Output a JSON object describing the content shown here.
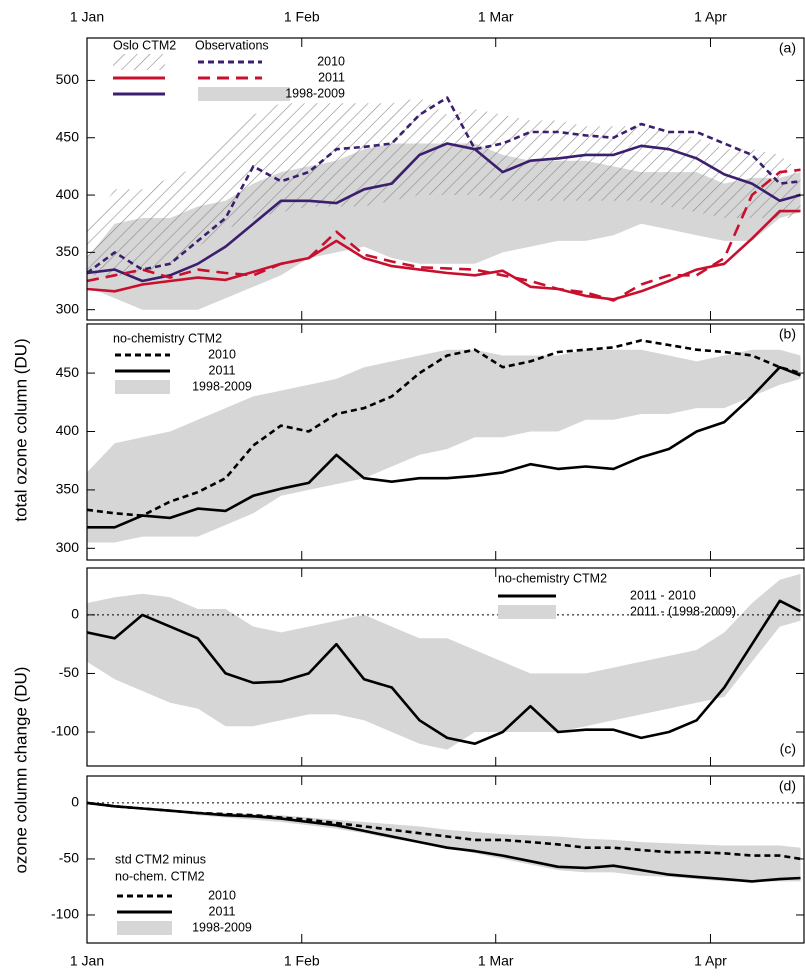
{
  "chart_data": [
    {
      "type": "line",
      "panel_label": "(a)",
      "ylabel": "total ozone column  (DU)",
      "x": [
        0,
        4,
        8,
        12,
        16,
        20,
        24,
        28,
        32,
        36,
        40,
        44,
        48,
        52,
        56,
        60,
        64,
        68,
        72,
        76,
        80,
        84,
        88,
        92,
        96,
        100,
        103
      ],
      "xlim": [
        0,
        103.5
      ],
      "xticks": [
        {
          "value": 0,
          "label": "1 Jan"
        },
        {
          "value": 31,
          "label": "1 Feb"
        },
        {
          "value": 59,
          "label": "1 Mar"
        },
        {
          "value": 90,
          "label": "1 Apr"
        }
      ],
      "xtick_labels": "top",
      "ylim": [
        291,
        537
      ],
      "yticks": [
        300,
        350,
        400,
        450,
        500
      ],
      "legend_titles": [
        "Oslo CTM2",
        "Observations"
      ],
      "series": [
        {
          "name": "1998-2009",
          "color": "#d6d6d6",
          "style": "band",
          "low": [
            320,
            310,
            300,
            300,
            300,
            310,
            320,
            330,
            345,
            350,
            355,
            345,
            340,
            340,
            340,
            350,
            355,
            360,
            360,
            365,
            375,
            370,
            365,
            360,
            360,
            380,
            385
          ],
          "high": [
            345,
            375,
            380,
            380,
            390,
            395,
            410,
            420,
            425,
            430,
            440,
            445,
            445,
            445,
            445,
            435,
            430,
            430,
            430,
            425,
            420,
            420,
            420,
            410,
            415,
            415,
            420
          ]
        },
        {
          "color": "#8a8a8a",
          "style": "hatch",
          "low": [
            330,
            330,
            330,
            340,
            355,
            370,
            380,
            385,
            390,
            390,
            390,
            395,
            400,
            400,
            400,
            395,
            395,
            395,
            395,
            395,
            395,
            390,
            385,
            380,
            380,
            380,
            380
          ],
          "high": [
            370,
            405,
            405,
            415,
            425,
            450,
            470,
            480,
            480,
            480,
            480,
            480,
            485,
            470,
            475,
            470,
            465,
            465,
            460,
            460,
            460,
            455,
            450,
            440,
            440,
            435,
            420
          ]
        },
        {
          "color": "#c8102e",
          "style": "solid",
          "values": [
            318,
            316,
            322,
            325,
            328,
            326,
            333,
            340,
            345,
            360,
            345,
            338,
            335,
            332,
            330,
            334,
            320,
            318,
            312,
            309,
            316,
            325,
            335,
            340,
            362,
            386,
            386
          ]
        },
        {
          "color": "#3b1f6e",
          "style": "solid",
          "values": [
            332,
            335,
            325,
            330,
            340,
            355,
            375,
            395,
            395,
            393,
            405,
            410,
            435,
            445,
            440,
            420,
            430,
            432,
            435,
            435,
            443,
            440,
            432,
            418,
            410,
            395,
            400
          ]
        },
        {
          "name": "2011",
          "color": "#c8102e",
          "style": "dashed",
          "values": [
            325,
            330,
            335,
            328,
            335,
            332,
            330,
            340,
            345,
            368,
            348,
            342,
            337,
            336,
            335,
            330,
            325,
            318,
            315,
            308,
            322,
            330,
            330,
            345,
            400,
            420,
            422
          ]
        },
        {
          "name": "2010",
          "color": "#3b1f6e",
          "style": "dotted",
          "values": [
            332,
            350,
            335,
            340,
            360,
            380,
            425,
            412,
            420,
            440,
            442,
            445,
            470,
            485,
            440,
            445,
            455,
            455,
            452,
            450,
            462,
            455,
            455,
            445,
            435,
            410,
            412
          ]
        }
      ]
    },
    {
      "type": "line",
      "panel_label": "(b)",
      "x": [
        0,
        4,
        8,
        12,
        16,
        20,
        24,
        28,
        32,
        36,
        40,
        44,
        48,
        52,
        56,
        60,
        64,
        68,
        72,
        76,
        80,
        84,
        88,
        92,
        96,
        100,
        103
      ],
      "xlim": [
        0,
        103.5
      ],
      "xticks": [
        {
          "value": 0,
          "label": "1 Jan"
        },
        {
          "value": 31,
          "label": "1 Feb"
        },
        {
          "value": 59,
          "label": "1 Mar"
        },
        {
          "value": 90,
          "label": "1 Apr"
        }
      ],
      "xtick_labels": "none",
      "ylim": [
        290,
        492
      ],
      "yticks": [
        300,
        350,
        400,
        450
      ],
      "legend_titles": [
        "no-chemistry CTM2"
      ],
      "series": [
        {
          "name": "1998-2009",
          "color": "#d6d6d6",
          "style": "band",
          "low": [
            305,
            305,
            310,
            310,
            310,
            320,
            330,
            345,
            350,
            355,
            360,
            370,
            380,
            385,
            395,
            395,
            400,
            400,
            410,
            410,
            415,
            415,
            420,
            420,
            430,
            440,
            445
          ],
          "high": [
            365,
            390,
            395,
            400,
            410,
            420,
            430,
            435,
            440,
            445,
            455,
            460,
            465,
            470,
            470,
            465,
            465,
            465,
            470,
            470,
            470,
            465,
            460,
            465,
            470,
            470,
            465
          ]
        },
        {
          "name": "2011",
          "color": "#000000",
          "style": "solid",
          "values": [
            318,
            318,
            328,
            326,
            334,
            332,
            345,
            351,
            356,
            380,
            360,
            357,
            360,
            360,
            362,
            365,
            372,
            368,
            370,
            368,
            378,
            385,
            400,
            408,
            430,
            455,
            448
          ]
        },
        {
          "name": "2010",
          "color": "#000000",
          "style": "dotted",
          "values": [
            333,
            330,
            328,
            340,
            348,
            360,
            388,
            405,
            400,
            415,
            420,
            430,
            450,
            465,
            470,
            455,
            460,
            468,
            470,
            472,
            478,
            474,
            470,
            468,
            465,
            455,
            450
          ]
        }
      ]
    },
    {
      "type": "line",
      "panel_label": "(c)",
      "ylabel": "ozone column change  (DU)",
      "x": [
        0,
        4,
        8,
        12,
        16,
        20,
        24,
        28,
        32,
        36,
        40,
        44,
        48,
        52,
        56,
        60,
        64,
        68,
        72,
        76,
        80,
        84,
        88,
        92,
        96,
        100,
        103
      ],
      "xlim": [
        0,
        103.5
      ],
      "xticks": [
        {
          "value": 0,
          "label": "1 Jan"
        },
        {
          "value": 31,
          "label": "1 Feb"
        },
        {
          "value": 59,
          "label": "1 Mar"
        },
        {
          "value": 90,
          "label": "1 Apr"
        }
      ],
      "xtick_labels": "none",
      "ylim": [
        -129,
        40
      ],
      "yticks": [
        -100,
        -50,
        0
      ],
      "hline": 0,
      "legend_titles": [
        "no-chemistry CTM2"
      ],
      "series": [
        {
          "name": "2011 - (1998-2009)",
          "color": "#d6d6d6",
          "style": "band",
          "low": [
            -40,
            -55,
            -65,
            -75,
            -80,
            -95,
            -95,
            -90,
            -85,
            -85,
            -90,
            -100,
            -110,
            -115,
            -100,
            -100,
            -100,
            -100,
            -95,
            -90,
            -85,
            -80,
            -75,
            -70,
            -40,
            -10,
            -5
          ],
          "high": [
            10,
            15,
            18,
            15,
            5,
            5,
            -10,
            -15,
            -10,
            -5,
            0,
            -10,
            -20,
            -20,
            -30,
            -40,
            -50,
            -50,
            -50,
            -45,
            -40,
            -35,
            -30,
            -15,
            10,
            30,
            35
          ]
        },
        {
          "name": "2011 - 2010",
          "color": "#000000",
          "style": "solid",
          "values": [
            -15,
            -20,
            0,
            -10,
            -20,
            -50,
            -58,
            -57,
            -50,
            -25,
            -55,
            -62,
            -90,
            -105,
            -110,
            -100,
            -78,
            -100,
            -98,
            -98,
            -105,
            -100,
            -90,
            -62,
            -25,
            12,
            3
          ]
        }
      ]
    },
    {
      "type": "line",
      "panel_label": "(d)",
      "x": [
        0,
        4,
        8,
        12,
        16,
        20,
        24,
        28,
        32,
        36,
        40,
        44,
        48,
        52,
        56,
        60,
        64,
        68,
        72,
        76,
        80,
        84,
        88,
        92,
        96,
        100,
        103
      ],
      "xlim": [
        0,
        103.5
      ],
      "xticks": [
        {
          "value": 0,
          "label": "1 Jan"
        },
        {
          "value": 31,
          "label": "1 Feb"
        },
        {
          "value": 59,
          "label": "1 Mar"
        },
        {
          "value": 90,
          "label": "1 Apr"
        }
      ],
      "xtick_labels": "bottom",
      "ylim": [
        -125,
        24
      ],
      "yticks": [
        -100,
        -50,
        0
      ],
      "hline": 0,
      "legend_titles": [
        "std CTM2 minus",
        "no-chem. CTM2"
      ],
      "series": [
        {
          "name": "1998-2009",
          "color": "#d6d6d6",
          "style": "band",
          "low": [
            0,
            -4,
            -6,
            -8,
            -11,
            -13,
            -15,
            -17,
            -20,
            -23,
            -27,
            -32,
            -36,
            -40,
            -45,
            -50,
            -55,
            -60,
            -62,
            -62,
            -65,
            -66,
            -68,
            -70,
            -70,
            -70,
            -70
          ],
          "high": [
            0,
            -2,
            -4,
            -6,
            -8,
            -9,
            -10,
            -11,
            -13,
            -15,
            -17,
            -19,
            -21,
            -24,
            -26,
            -28,
            -29,
            -30,
            -32,
            -33,
            -35,
            -36,
            -37,
            -38,
            -38,
            -38,
            -40
          ]
        },
        {
          "name": "2011",
          "color": "#000000",
          "style": "solid",
          "values": [
            0,
            -3,
            -5,
            -7,
            -9,
            -11,
            -12,
            -14,
            -17,
            -20,
            -25,
            -30,
            -35,
            -40,
            -43,
            -47,
            -52,
            -57,
            -58,
            -56,
            -60,
            -64,
            -66,
            -68,
            -70,
            -68,
            -67
          ]
        },
        {
          "name": "2010",
          "color": "#000000",
          "style": "dotted",
          "values": [
            0,
            -3,
            -5,
            -7,
            -9,
            -10,
            -11,
            -13,
            -15,
            -18,
            -21,
            -24,
            -27,
            -30,
            -33,
            -33,
            -35,
            -37,
            -40,
            -40,
            -42,
            -44,
            -44,
            -45,
            -47,
            -47,
            -50
          ]
        }
      ]
    }
  ]
}
